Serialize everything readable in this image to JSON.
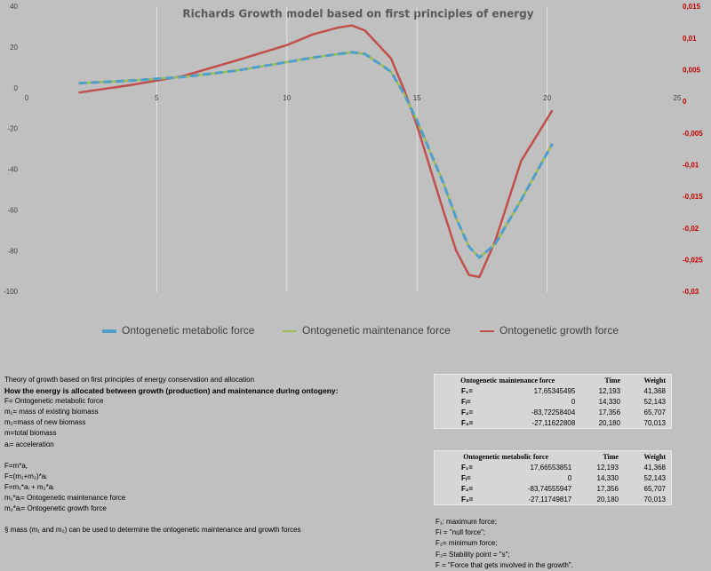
{
  "chart_data": {
    "type": "line",
    "title": "Richards Growth model based on first principles of energy",
    "x": [
      2,
      4,
      6,
      8,
      10,
      11,
      12,
      12.5,
      13,
      14,
      14.5,
      15,
      16,
      16.5,
      17,
      17.4,
      18,
      19,
      20.2
    ],
    "series": [
      {
        "name": "Ontogenetic metabolic force",
        "color": "#4f9fc8",
        "dashed": true,
        "values": [
          2.6,
          3.9,
          5.7,
          8.7,
          13,
          15.2,
          17,
          17.8,
          17,
          8.3,
          -2.6,
          -15.7,
          -46,
          -63.5,
          -77.8,
          -83,
          -76.5,
          -54.8,
          -27.1
        ]
      },
      {
        "name": "Ontogenetic  maintenance force",
        "color": "#9bbb59",
        "values": [
          2.6,
          3.9,
          5.7,
          8.7,
          13,
          15.2,
          17,
          17.8,
          17,
          8.3,
          -2.6,
          -15.7,
          -46,
          -63.5,
          -77.8,
          -83,
          -76.5,
          -54.8,
          -27.1
        ]
      },
      {
        "name": "Ontogenetic growth force",
        "color": "#c0504d",
        "axis": "y2",
        "values": [
          0.0015,
          0.0027,
          0.0041,
          0.0065,
          0.009,
          0.0107,
          0.0118,
          0.0121,
          0.0113,
          0.0069,
          0.002,
          -0.0037,
          -0.017,
          -0.0234,
          -0.0273,
          -0.0276,
          -0.022,
          -0.0093,
          -0.0013
        ]
      }
    ],
    "xlim": [
      0,
      25
    ],
    "xticks": [
      0,
      5,
      10,
      15,
      20,
      25
    ],
    "ylim": [
      -100,
      40
    ],
    "yticks": [
      40,
      20,
      0,
      -20,
      -40,
      -60,
      -80,
      -100
    ],
    "y2lim": [
      -0.03,
      0.015
    ],
    "y2ticks": [
      {
        "value": 0.015,
        "label": "0,015"
      },
      {
        "value": 0.01,
        "label": "0,01"
      },
      {
        "value": 0.005,
        "label": "0,005"
      },
      0,
      {
        "value": -0.005,
        "label": "-0,005"
      },
      {
        "value": -0.01,
        "label": "-0,01"
      },
      {
        "value": -0.015,
        "label": "-0,015"
      },
      {
        "value": -0.02,
        "label": "-0,02"
      },
      {
        "value": -0.025,
        "label": "-0,025"
      },
      {
        "value": -0.03,
        "label": "-0,03"
      }
    ],
    "grid": true,
    "legend": "bottom"
  },
  "text": {
    "lines": [
      "Theory of growth based on first principles of energy conservation and allocation",
      "How the energy is allocated between growth (production) and maintenance during ontogeny:",
      "F= Ontogenetic metabolic force",
      "m₁= mass of existing biomass",
      "m₂=mass of new biomass",
      "m=total biomass",
      "aᵢ= acceleration",
      "F=m*a,",
      "F=(m₁+m₂)*aᵢ",
      "F=m₁*aᵢ + m₂*aᵢ",
      "m₁*aᵢ= Ontogenetic maintenance force",
      "m₂*aᵢ= Ontogenetic growth force"
    ],
    "footnote": "§ mass (m₁ and m₂) can be used to determine the ontogenetic maintenance and growth forces"
  },
  "tables": [
    {
      "header": [
        "Ontogenetic maintenance force",
        "Time",
        "Weight"
      ],
      "rows": [
        [
          "F₁=",
          "17,65345495",
          "12,193",
          "41,368"
        ],
        [
          "Fᵢ=",
          "0",
          "14,330",
          "52,143"
        ],
        [
          "F₂=",
          "-83,72258404",
          "17,356",
          "65,707"
        ],
        [
          "F₃=",
          "-27,11622808",
          "20,180",
          "70,013"
        ]
      ]
    },
    {
      "header": [
        "Ontogenetic metabolic force",
        "Time",
        "Weight"
      ],
      "rows": [
        [
          "F₁=",
          "17,66553851",
          "12,193",
          "41,368"
        ],
        [
          "Fᵢ=",
          "0",
          "14,330",
          "52,143"
        ],
        [
          "F₂=",
          "-83,74555947",
          "17,356",
          "65,707"
        ],
        [
          "F₃=",
          "-27,11749817",
          "20,180",
          "70,013"
        ]
      ]
    }
  ],
  "definitions": [
    "F₁: maximum force;",
    "Fi = \"null force\";",
    "F₂= minimum force;",
    "F₃= Stability point = \"s\";",
    "F = \"Force that gets involved in the growth\"."
  ]
}
